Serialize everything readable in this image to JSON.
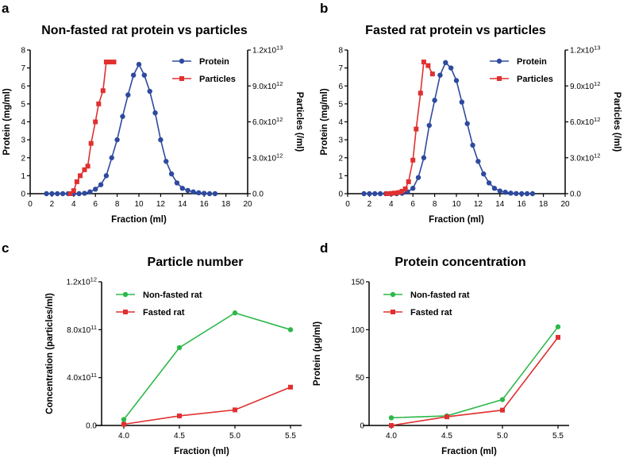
{
  "chart_data": [
    {
      "panel": "a",
      "type": "line",
      "title": "Non-fasted rat protein vs particles",
      "xlabel": "Fraction (ml)",
      "ylabel": "Protein (mg/ml)",
      "y2label": "Particles (/ml)",
      "xlim": [
        0,
        20
      ],
      "ylim": [
        0,
        8
      ],
      "y2lim": [
        0,
        12000000000000.0
      ],
      "xticks": [
        "0",
        "2",
        "4",
        "6",
        "8",
        "10",
        "12",
        "14",
        "16",
        "18",
        "20"
      ],
      "yticks": [
        "0",
        "1",
        "2",
        "3",
        "4",
        "5",
        "6",
        "7",
        "8"
      ],
      "y2ticks": [
        "0.0",
        "3.0x10",
        "6.0x10",
        "9.0x10",
        "1.2x10"
      ],
      "y2tick_exponents": [
        "",
        "12",
        "12",
        "12",
        "13"
      ],
      "legend_position": "top-right",
      "series": [
        {
          "name": "Protein",
          "axis": "left",
          "color": "#2e4a9e",
          "marker": "circle",
          "x": [
            1.5,
            2.0,
            2.5,
            3.0,
            3.5,
            4.0,
            4.5,
            5.0,
            5.5,
            6.0,
            6.5,
            7.0,
            7.5,
            8.0,
            8.5,
            9.0,
            9.5,
            10.0,
            10.5,
            11.0,
            11.5,
            12.0,
            12.5,
            13.0,
            13.5,
            14.0,
            14.5,
            15.0,
            15.5,
            16.0,
            16.5,
            17.0
          ],
          "y": [
            0.0,
            0.0,
            0.0,
            0.0,
            0.0,
            0.0,
            0.0,
            0.02,
            0.1,
            0.25,
            0.5,
            1.0,
            2.0,
            3.0,
            4.3,
            5.5,
            6.6,
            7.2,
            6.6,
            5.7,
            4.5,
            3.0,
            1.8,
            1.1,
            0.6,
            0.3,
            0.18,
            0.1,
            0.05,
            0.02,
            0.0,
            0.0
          ]
        },
        {
          "name": "Particles",
          "axis": "right",
          "color": "#e03030",
          "marker": "square",
          "x": [
            3.7,
            4.0,
            4.3,
            4.6,
            5.0,
            5.3,
            5.6,
            6.0,
            6.3,
            6.7,
            7.0,
            7.3,
            7.7
          ],
          "y": [
            0,
            250000000000.0,
            1000000000000.0,
            1500000000000.0,
            2000000000000.0,
            2300000000000.0,
            4200000000000.0,
            6000000000000.0,
            7500000000000.0,
            8600000000000.0,
            11000000000000.0,
            11000000000000.0,
            11000000000000.0
          ]
        }
      ]
    },
    {
      "panel": "b",
      "type": "line",
      "title": "Fasted rat protein vs particles",
      "xlabel": "Fraction (ml)",
      "ylabel": "Protein (mg/ml)",
      "y2label": "Particles (/ml)",
      "xlim": [
        0,
        20
      ],
      "ylim": [
        0,
        8
      ],
      "y2lim": [
        0,
        12000000000000.0
      ],
      "xticks": [
        "0",
        "2",
        "4",
        "6",
        "8",
        "10",
        "12",
        "14",
        "16",
        "18",
        "20"
      ],
      "yticks": [
        "0",
        "1",
        "2",
        "3",
        "4",
        "5",
        "6",
        "7",
        "8"
      ],
      "y2ticks": [
        "0.0",
        "3.0x10",
        "6.0x10",
        "9.0x10",
        "1.2x10"
      ],
      "y2tick_exponents": [
        "",
        "12",
        "12",
        "12",
        "13"
      ],
      "legend_position": "top-right",
      "series": [
        {
          "name": "Protein",
          "axis": "left",
          "color": "#2e4a9e",
          "marker": "circle",
          "x": [
            1.5,
            2.0,
            2.5,
            3.0,
            3.5,
            4.0,
            4.5,
            5.0,
            5.5,
            6.0,
            6.5,
            7.0,
            7.5,
            8.0,
            8.5,
            9.0,
            9.5,
            10.0,
            10.5,
            11.0,
            11.5,
            12.0,
            12.5,
            13.0,
            13.5,
            14.0,
            14.5,
            15.0,
            15.5,
            16.0,
            16.5,
            17.0
          ],
          "y": [
            0.0,
            0.0,
            0.0,
            0.0,
            0.0,
            0.0,
            0.0,
            0.02,
            0.1,
            0.3,
            0.9,
            2.0,
            3.8,
            5.2,
            6.6,
            7.3,
            7.0,
            6.3,
            5.1,
            3.9,
            2.7,
            1.8,
            1.1,
            0.6,
            0.3,
            0.15,
            0.08,
            0.03,
            0.01,
            0.0,
            0.0,
            0.0
          ]
        },
        {
          "name": "Particles",
          "axis": "right",
          "color": "#e03030",
          "marker": "square",
          "x": [
            3.6,
            4.0,
            4.3,
            4.7,
            5.0,
            5.3,
            5.6,
            6.0,
            6.3,
            6.7,
            7.0,
            7.4,
            7.8
          ],
          "y": [
            0,
            20000000000.0,
            50000000000.0,
            100000000000.0,
            200000000000.0,
            400000000000.0,
            1000000000000.0,
            2800000000000.0,
            5400000000000.0,
            8400000000000.0,
            11000000000000.0,
            10700000000000.0,
            10000000000000.0
          ]
        }
      ]
    },
    {
      "panel": "c",
      "type": "line",
      "title": "Particle number",
      "xlabel": "Fraction (ml)",
      "ylabel": "Concentration (particles/ml)",
      "xlim": [
        3.8,
        5.6
      ],
      "ylim": [
        0,
        1200000000000.0
      ],
      "xtick_values": [
        4.0,
        4.5,
        5.0,
        5.5
      ],
      "xticks": [
        "4.0",
        "4.5",
        "5.0",
        "5.5"
      ],
      "yticks": [
        "0.0",
        "4.0x10",
        "8.0x10",
        "1.2x10"
      ],
      "ytick_exponents": [
        "",
        "11",
        "11",
        "12"
      ],
      "legend_position": "top-left",
      "series": [
        {
          "name": "Non-fasted rat",
          "color": "#2eb84a",
          "marker": "circle",
          "x": [
            4.0,
            4.5,
            5.0,
            5.5
          ],
          "y": [
            50000000000.0,
            650000000000.0,
            940000000000.0,
            800000000000.0
          ]
        },
        {
          "name": "Fasted rat",
          "color": "#e03030",
          "marker": "square",
          "x": [
            4.0,
            4.5,
            5.0,
            5.5
          ],
          "y": [
            10000000000.0,
            80000000000.0,
            130000000000.0,
            320000000000.0
          ]
        }
      ]
    },
    {
      "panel": "d",
      "type": "line",
      "title": "Protein concentration",
      "xlabel": "Fraction (ml)",
      "ylabel": "Protein (μg/ml)",
      "xlim": [
        3.8,
        5.6
      ],
      "ylim": [
        0,
        150
      ],
      "xtick_values": [
        4.0,
        4.5,
        5.0,
        5.5
      ],
      "xticks": [
        "4.0",
        "4.5",
        "5.0",
        "5.5"
      ],
      "yticks": [
        "0",
        "50",
        "100",
        "150"
      ],
      "legend_position": "top-left",
      "series": [
        {
          "name": "Non-fasted rat",
          "color": "#2eb84a",
          "marker": "circle",
          "x": [
            4.0,
            4.5,
            5.0,
            5.5
          ],
          "y": [
            8,
            10,
            27,
            103
          ]
        },
        {
          "name": "Fasted rat",
          "color": "#e03030",
          "marker": "square",
          "x": [
            4.0,
            4.5,
            5.0,
            5.5
          ],
          "y": [
            0,
            9,
            16,
            92
          ]
        }
      ]
    }
  ]
}
